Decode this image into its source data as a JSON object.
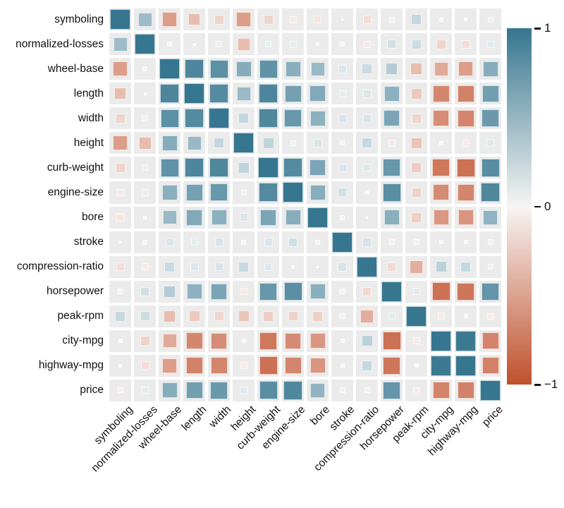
{
  "chart_data": {
    "type": "heatmap",
    "title": "",
    "subtitle": "",
    "encoding": "square size = |correlation|, color = correlation sign and magnitude",
    "legend_position": "right",
    "variables": [
      "symboling",
      "normalized-losses",
      "wheel-base",
      "length",
      "width",
      "height",
      "curb-weight",
      "engine-size",
      "bore",
      "stroke",
      "compression-ratio",
      "horsepower",
      "peak-rpm",
      "city-mpg",
      "highway-mpg",
      "price"
    ],
    "matrix": [
      [
        1.0,
        0.47,
        -0.54,
        -0.36,
        -0.23,
        -0.54,
        -0.23,
        -0.11,
        -0.14,
        -0.01,
        -0.18,
        0.07,
        0.27,
        -0.04,
        0.03,
        -0.08
      ],
      [
        0.47,
        1.0,
        -0.06,
        0.02,
        0.09,
        -0.37,
        0.1,
        0.11,
        -0.03,
        0.06,
        -0.11,
        0.21,
        0.24,
        -0.23,
        -0.18,
        0.13
      ],
      [
        -0.54,
        -0.06,
        1.0,
        0.88,
        0.8,
        0.59,
        0.78,
        0.57,
        0.49,
        0.16,
        0.25,
        0.35,
        -0.36,
        -0.47,
        -0.54,
        0.58
      ],
      [
        -0.36,
        0.02,
        0.88,
        1.0,
        0.84,
        0.49,
        0.88,
        0.68,
        0.61,
        0.12,
        0.16,
        0.55,
        -0.29,
        -0.67,
        -0.7,
        0.69
      ],
      [
        -0.23,
        0.09,
        0.8,
        0.84,
        1.0,
        0.28,
        0.87,
        0.74,
        0.56,
        0.18,
        0.18,
        0.64,
        -0.22,
        -0.64,
        -0.68,
        0.73
      ],
      [
        -0.54,
        -0.37,
        0.59,
        0.49,
        0.28,
        1.0,
        0.3,
        0.07,
        0.17,
        -0.06,
        0.26,
        -0.11,
        -0.32,
        -0.05,
        -0.11,
        0.14
      ],
      [
        -0.23,
        0.1,
        0.78,
        0.88,
        0.87,
        0.3,
        1.0,
        0.85,
        0.64,
        0.17,
        0.15,
        0.75,
        -0.27,
        -0.76,
        -0.8,
        0.82
      ],
      [
        -0.11,
        0.11,
        0.57,
        0.68,
        0.74,
        0.07,
        0.85,
        1.0,
        0.58,
        0.21,
        0.03,
        0.81,
        -0.24,
        -0.65,
        -0.68,
        0.87
      ],
      [
        -0.14,
        -0.03,
        0.49,
        0.61,
        0.56,
        0.17,
        0.64,
        0.58,
        1.0,
        -0.06,
        0.0,
        0.57,
        -0.25,
        -0.58,
        -0.59,
        0.54
      ],
      [
        -0.01,
        0.06,
        0.16,
        0.12,
        0.18,
        -0.06,
        0.17,
        0.21,
        -0.06,
        1.0,
        0.19,
        0.08,
        -0.07,
        -0.04,
        -0.04,
        0.08
      ],
      [
        -0.18,
        -0.11,
        0.25,
        0.16,
        0.18,
        0.26,
        0.15,
        0.03,
        0.0,
        0.19,
        1.0,
        -0.2,
        -0.44,
        0.32,
        0.27,
        0.07
      ],
      [
        0.07,
        0.21,
        0.35,
        0.55,
        0.64,
        -0.11,
        0.75,
        0.81,
        0.57,
        0.08,
        -0.2,
        1.0,
        0.13,
        -0.8,
        -0.77,
        0.76
      ],
      [
        0.27,
        0.24,
        -0.36,
        -0.29,
        -0.22,
        -0.32,
        -0.27,
        -0.24,
        -0.25,
        -0.07,
        -0.44,
        0.13,
        1.0,
        -0.11,
        -0.05,
        -0.1
      ],
      [
        -0.04,
        -0.23,
        -0.47,
        -0.67,
        -0.64,
        -0.05,
        -0.76,
        -0.65,
        -0.58,
        -0.04,
        0.32,
        -0.8,
        -0.11,
        1.0,
        0.97,
        -0.69
      ],
      [
        0.03,
        -0.18,
        -0.54,
        -0.7,
        -0.68,
        -0.11,
        -0.8,
        -0.68,
        -0.59,
        -0.04,
        0.27,
        -0.77,
        -0.05,
        0.97,
        1.0,
        -0.7
      ],
      [
        -0.08,
        0.13,
        0.58,
        0.69,
        0.73,
        0.14,
        0.82,
        0.87,
        0.54,
        0.08,
        0.07,
        0.76,
        -0.1,
        -0.69,
        -0.7,
        1.0
      ]
    ],
    "value_range": [
      -1,
      1
    ],
    "colorbar": {
      "tick_labels": [
        "1",
        "0",
        "−1"
      ],
      "tick_values": [
        1,
        0,
        -1
      ]
    },
    "colors": {
      "positive_max": "#36768f",
      "negative_max": "#c0502c",
      "zero": "#f6f5f3",
      "tile_background": "#ebebeb",
      "figure_background": "#ffffff",
      "label_text": "#111111"
    },
    "grid": "white gaps between gray cells",
    "x_tick_rotation_deg": 45
  }
}
